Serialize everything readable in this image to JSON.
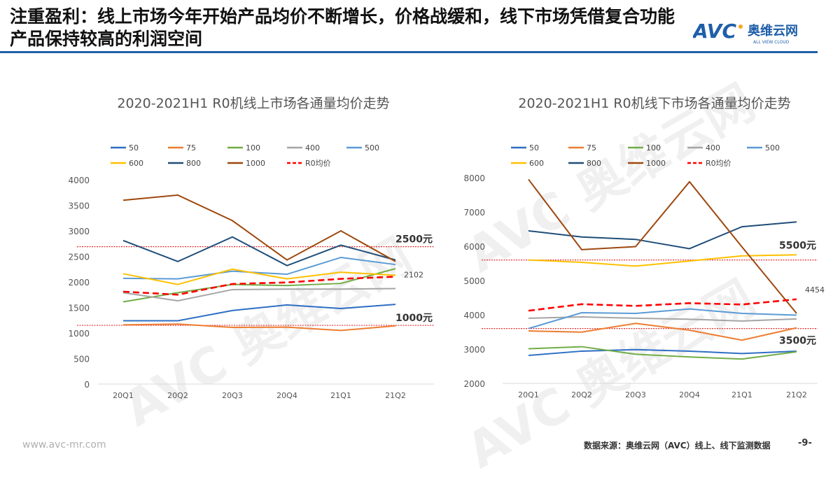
{
  "header": {
    "title": "注重盈利：线上市场今年开始产品均价不断增长，价格战缓和，线下市场凭借复合功能产品保持较高的利润空间",
    "logo_text": "AVC 奥维云网 ALL VIEW CLOUD"
  },
  "footer": {
    "website": "www.avc-mr.com",
    "source": "数据来源：奥维云网（AVC）线上、线下监测数据",
    "page": "-9-"
  },
  "watermark": "AVC 奥维云网",
  "colors": {
    "50": "#2e6fc4",
    "75": "#ed7d31",
    "100": "#70ad47",
    "400": "#a5a5a5",
    "500": "#5b9bd5",
    "600": "#ffc000",
    "800": "#1f4e79",
    "1000": "#9e480e",
    "R0均价": "#ff0000",
    "ref": "#e03030"
  },
  "chart_data": [
    {
      "type": "line",
      "title": "2020-2021H1 R0机线上市场各通量均价走势",
      "categories": [
        "20Q1",
        "20Q2",
        "20Q3",
        "20Q4",
        "21Q1",
        "21Q2"
      ],
      "ylim": [
        0,
        4000
      ],
      "yticks": [
        0,
        500,
        1000,
        1500,
        2000,
        2500,
        3000,
        3500,
        4000
      ],
      "legend": "top",
      "grid": false,
      "series": [
        {
          "name": "50",
          "values": [
            1240,
            1240,
            1440,
            1550,
            1480,
            1560
          ]
        },
        {
          "name": "75",
          "values": [
            1160,
            1175,
            1110,
            1115,
            1050,
            1140
          ]
        },
        {
          "name": "100",
          "values": [
            1610,
            1790,
            1950,
            1930,
            1970,
            2260
          ]
        },
        {
          "name": "400",
          "values": [
            1790,
            1630,
            1850,
            1860,
            1860,
            1870
          ]
        },
        {
          "name": "500",
          "values": [
            2070,
            2060,
            2210,
            2150,
            2480,
            2340
          ]
        },
        {
          "name": "600",
          "values": [
            2160,
            1950,
            2250,
            2060,
            2190,
            2130
          ]
        },
        {
          "name": "800",
          "values": [
            2810,
            2400,
            2880,
            2320,
            2720,
            2430
          ]
        },
        {
          "name": "1000",
          "values": [
            3600,
            3700,
            3200,
            2430,
            3000,
            2400
          ]
        },
        {
          "name": "R0均价",
          "values": [
            1810,
            1750,
            1960,
            1990,
            2060,
            2102
          ],
          "dashed": true
        }
      ],
      "annotations": [
        {
          "text": "2102",
          "series": "R0均价"
        }
      ],
      "reference_lines": [
        {
          "label": "2500元",
          "value": 2690
        },
        {
          "label": "1000元",
          "value": 1150
        }
      ]
    },
    {
      "type": "line",
      "title": "2020-2021H1 R0机线下市场各通量均价走势",
      "categories": [
        "20Q1",
        "20Q2",
        "20Q3",
        "20Q4",
        "21Q1",
        "21Q2"
      ],
      "ylim": [
        2000,
        8000
      ],
      "yticks": [
        2000,
        3000,
        4000,
        5000,
        6000,
        7000,
        8000
      ],
      "legend": "top",
      "grid": false,
      "series": [
        {
          "name": "50",
          "values": [
            2815,
            2940,
            2985,
            2940,
            2870,
            2940
          ]
        },
        {
          "name": "75",
          "values": [
            3530,
            3495,
            3750,
            3550,
            3260,
            3620
          ]
        },
        {
          "name": "100",
          "values": [
            3010,
            3070,
            2850,
            2770,
            2710,
            2920
          ]
        },
        {
          "name": "400",
          "values": [
            3900,
            3940,
            3900,
            3870,
            3820,
            3880
          ]
        },
        {
          "name": "500",
          "values": [
            3600,
            4060,
            4040,
            4170,
            4040,
            3990
          ]
        },
        {
          "name": "600",
          "values": [
            5600,
            5530,
            5420,
            5570,
            5720,
            5750
          ]
        },
        {
          "name": "800",
          "values": [
            6450,
            6270,
            6200,
            5930,
            6570,
            6710
          ]
        },
        {
          "name": "1000",
          "values": [
            7950,
            5900,
            5990,
            7880,
            5980,
            4040
          ]
        },
        {
          "name": "R0均价",
          "values": [
            4120,
            4310,
            4260,
            4340,
            4300,
            4454
          ],
          "dashed": true
        }
      ],
      "annotations": [
        {
          "text": "4454",
          "series": "R0均价"
        }
      ],
      "reference_lines": [
        {
          "label": "5500元",
          "value": 5600
        },
        {
          "label": "3500元",
          "value": 3600
        }
      ]
    }
  ]
}
